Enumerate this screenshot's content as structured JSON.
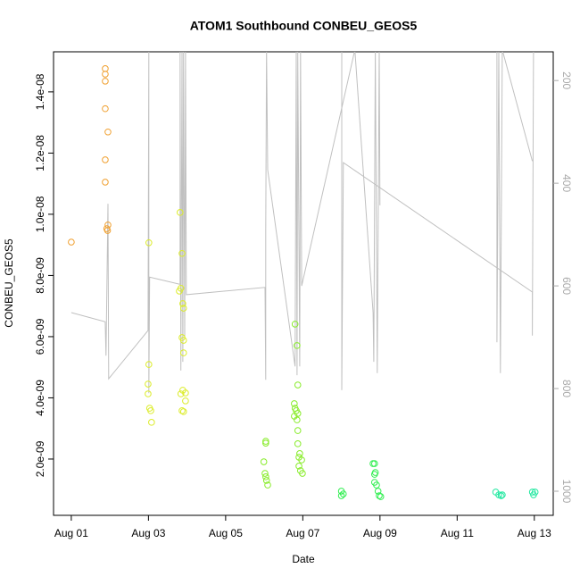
{
  "chart_data": {
    "type": "scatter",
    "title": "ATOM1 Southbound CONBEU_GEOS5",
    "x_label": "Date",
    "y_label": "CONBEU_GEOS5",
    "xlim": [
      -0.46,
      12.49
    ],
    "xticks": [
      {
        "value": 0,
        "label": "Aug 01"
      },
      {
        "value": 2,
        "label": "Aug 03"
      },
      {
        "value": 4,
        "label": "Aug 05"
      },
      {
        "value": 6,
        "label": "Aug 07"
      },
      {
        "value": 8,
        "label": "Aug 09"
      },
      {
        "value": 10,
        "label": "Aug 11"
      },
      {
        "value": 12,
        "label": "Aug 13"
      }
    ],
    "ylim": [
      1.6e-10,
      1.531e-08
    ],
    "yticks": [
      {
        "value": 2e-09,
        "label": "2.0e-09"
      },
      {
        "value": 4e-09,
        "label": "4.0e-09"
      },
      {
        "value": 6e-09,
        "label": "6.0e-09"
      },
      {
        "value": 8e-09,
        "label": "8.0e-09"
      },
      {
        "value": 1e-08,
        "label": "1.0e-08"
      },
      {
        "value": 1.2e-08,
        "label": "1.2e-08"
      },
      {
        "value": 1.4e-08,
        "label": "1.4e-08"
      }
    ],
    "y2lim": [
      1047,
      144
    ],
    "y2ticks": [
      200,
      400,
      600,
      800,
      1000
    ],
    "series": [
      {
        "type": "scatter",
        "color": "#f0a030",
        "x": [
          0,
          0.88,
          0.88,
          0.88,
          0.88,
          0.88,
          0.88,
          0.95,
          0.95,
          0.94,
          0.92
        ],
        "values": [
          9.09e-09,
          1.476e-08,
          1.458e-08,
          1.435e-08,
          1.345e-08,
          1.178e-08,
          1.105e-08,
          1.269e-08,
          9.65e-09,
          9.47e-09,
          9.53e-09
        ]
      },
      {
        "type": "scatter",
        "color": "#dcec2a",
        "x": [
          2.01,
          2.01,
          1.99,
          1.99,
          2.03,
          2.06,
          2.08,
          2.82,
          2.87,
          2.84,
          2.8,
          2.89,
          2.91,
          2.87,
          2.91,
          2.91,
          2.89,
          2.96,
          2.84,
          2.96,
          2.87,
          2.91
        ],
        "values": [
          9.07e-09,
          5.09e-09,
          4.45e-09,
          4.13e-09,
          3.66e-09,
          3.58e-09,
          3.2e-09,
          1.006e-08,
          8.72e-09,
          7.58e-09,
          7.49e-09,
          7.08e-09,
          6.93e-09,
          5.97e-09,
          5.88e-09,
          5.47e-09,
          4.25e-09,
          4.16e-09,
          4.13e-09,
          3.9e-09,
          3.58e-09,
          3.55e-09
        ]
      },
      {
        "type": "scatter",
        "color": "#88ec2a",
        "x": [
          5.04,
          5.04,
          4.99,
          5.02,
          5.04,
          5.06,
          5.09,
          5.8,
          5.85,
          5.87,
          5.78,
          5.8,
          5.83,
          5.87,
          5.78,
          5.85,
          5.87,
          5.87,
          5.92,
          5.9,
          5.97,
          5.9,
          5.94,
          5.99
        ],
        "values": [
          2.58e-09,
          2.52e-09,
          1.91e-09,
          1.53e-09,
          1.42e-09,
          1.3e-09,
          1.15e-09,
          6.41e-09,
          5.71e-09,
          4.42e-09,
          3.81e-09,
          3.66e-09,
          3.58e-09,
          3.49e-09,
          3.4e-09,
          3.28e-09,
          2.93e-09,
          2.5e-09,
          2.18e-09,
          2.06e-09,
          1.97e-09,
          1.77e-09,
          1.62e-09,
          1.53e-09
        ]
      },
      {
        "type": "scatter",
        "color": "#30ee50",
        "x": [
          7.0,
          7.05,
          7.0,
          7.82,
          7.86,
          7.88,
          7.86,
          7.86,
          7.91,
          7.95,
          7.98,
          8.02
        ],
        "values": [
          9.5e-10,
          8.6e-10,
          8e-10,
          1.85e-09,
          1.85e-09,
          1.56e-09,
          1.5e-09,
          1.24e-09,
          1.15e-09,
          9.5e-10,
          8e-10,
          7.7e-10
        ]
      },
      {
        "type": "scatter",
        "color": "#22e8a0",
        "x": [
          11.0,
          11.08,
          11.14,
          11.17,
          11.95,
          11.98,
          12.02
        ],
        "values": [
          9.2e-10,
          8.3e-10,
          8e-10,
          8.3e-10,
          9.2e-10,
          8.3e-10,
          9.2e-10
        ]
      },
      {
        "type": "line",
        "axis": "y2",
        "color": "#c0c0c0",
        "x": [
          0,
          0.88,
          0.9,
          0.95,
          0.97,
          1.99,
          2.01,
          2.01,
          2.03,
          2.82,
          2.82,
          2.84,
          2.87,
          2.89,
          2.91,
          2.94,
          2.96,
          2.98,
          5.02,
          5.04,
          5.04,
          5.06,
          5.09,
          5.8,
          5.83,
          5.85,
          5.87,
          5.92,
          5.94,
          5.97,
          7.35,
          7.82,
          7.84,
          7.88,
          7.93,
          7.98,
          8.0,
          null,
          7.01,
          7.01,
          7.05,
          11.95,
          11.95,
          11.98,
          null,
          11.03,
          11.03,
          11.08,
          11.12,
          11.17,
          11.95
        ],
        "values": [
          652,
          670,
          736,
          440,
          781,
          687,
          140,
          809,
          583,
          597,
          140,
          765,
          140,
          748,
          140,
          704,
          140,
          617,
          603,
          783,
          492,
          140,
          374,
          757,
          140,
          774,
          140,
          757,
          140,
          600,
          140,
          652,
          748,
          140,
          770,
          140,
          443,
          null,
          140,
          803,
          360,
          612,
          697,
          140,
          null,
          140,
          710,
          140,
          770,
          140,
          357
        ]
      }
    ]
  }
}
